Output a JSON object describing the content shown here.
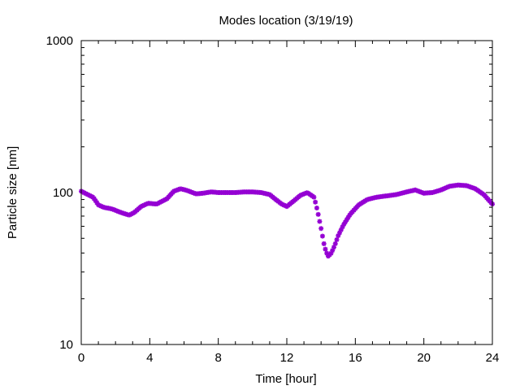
{
  "chart_data": {
    "type": "scatter",
    "title": "Modes location (3/19/19)",
    "xlabel": "Time [hour]",
    "ylabel": "Particle size [nm]",
    "xlim": [
      0,
      24
    ],
    "ylim": [
      10,
      1000
    ],
    "yscale": "log",
    "grid": false,
    "legend": "none",
    "x_ticks": [
      0,
      4,
      8,
      12,
      16,
      20,
      24
    ],
    "x_tick_labels": [
      "0",
      "4",
      "8",
      "12",
      "16",
      "20",
      "24"
    ],
    "y_ticks": [
      10,
      100,
      1000
    ],
    "y_tick_labels": [
      "10",
      "100",
      "1000"
    ],
    "marker_color": "#9400d3",
    "series": [
      {
        "keypoints_x": [
          0,
          0.3,
          0.7,
          1.0,
          1.3,
          1.8,
          2.3,
          2.8,
          3.1,
          3.5,
          3.9,
          4.4,
          5.0,
          5.4,
          5.8,
          6.2,
          6.7,
          7.1,
          7.6,
          8.0,
          8.5,
          9.0,
          9.5,
          10.0,
          10.5,
          11.0,
          11.3,
          11.7,
          12.0,
          12.4,
          12.8,
          13.2,
          13.6,
          13.8,
          14.0,
          14.2,
          14.4,
          14.6,
          14.8,
          15.0,
          15.3,
          15.7,
          16.2,
          16.7,
          17.2,
          17.8,
          18.4,
          19.0,
          19.5,
          20.0,
          20.5,
          21.0,
          21.5,
          22.0,
          22.5,
          23.0,
          23.5,
          24.0
        ],
        "keypoints_y": [
          102,
          98,
          93,
          83,
          80,
          78,
          74,
          71,
          74,
          81,
          85,
          84,
          91,
          102,
          106,
          103,
          98,
          99,
          101,
          100,
          100,
          100,
          101,
          101,
          100,
          97,
          91,
          84,
          81,
          88,
          96,
          100,
          93,
          75,
          58,
          44,
          38,
          40,
          45,
          52,
          61,
          72,
          83,
          90,
          93,
          95,
          97,
          101,
          104,
          99,
          100,
          104,
          110,
          112,
          111,
          106,
          97,
          84
        ]
      }
    ]
  }
}
